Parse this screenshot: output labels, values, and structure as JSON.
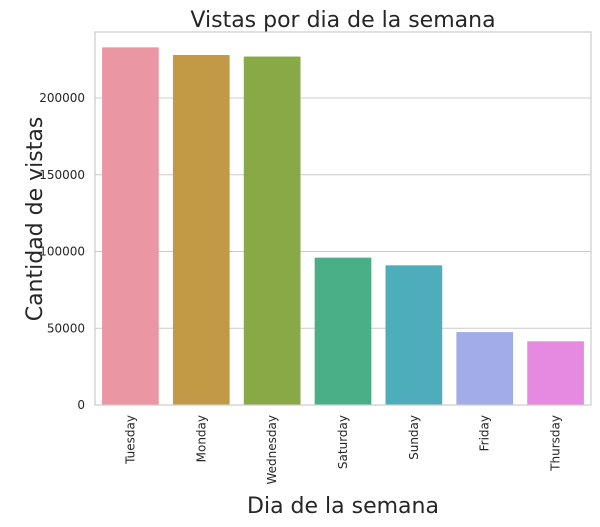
{
  "chart_data": {
    "type": "bar",
    "title": "Vistas por dia de la semana",
    "xlabel": "Dia de la semana",
    "ylabel": "Cantidad de vistas",
    "categories": [
      "Tuesday",
      "Monday",
      "Wednesday",
      "Saturday",
      "Sunday",
      "Friday",
      "Thursday"
    ],
    "values": [
      233000,
      228000,
      227000,
      96000,
      91000,
      47500,
      41500
    ],
    "colors": [
      "#EA96A3",
      "#C29A45",
      "#88A945",
      "#4AAE86",
      "#4EADBB",
      "#A2ACE9",
      "#E689E0"
    ],
    "ylim": [
      0,
      243000
    ],
    "yticks": [
      0,
      50000,
      100000,
      150000,
      200000
    ],
    "ytick_labels": [
      "0",
      "50000",
      "100000",
      "150000",
      "200000"
    ],
    "grid": "horizontal",
    "legend": "none"
  }
}
